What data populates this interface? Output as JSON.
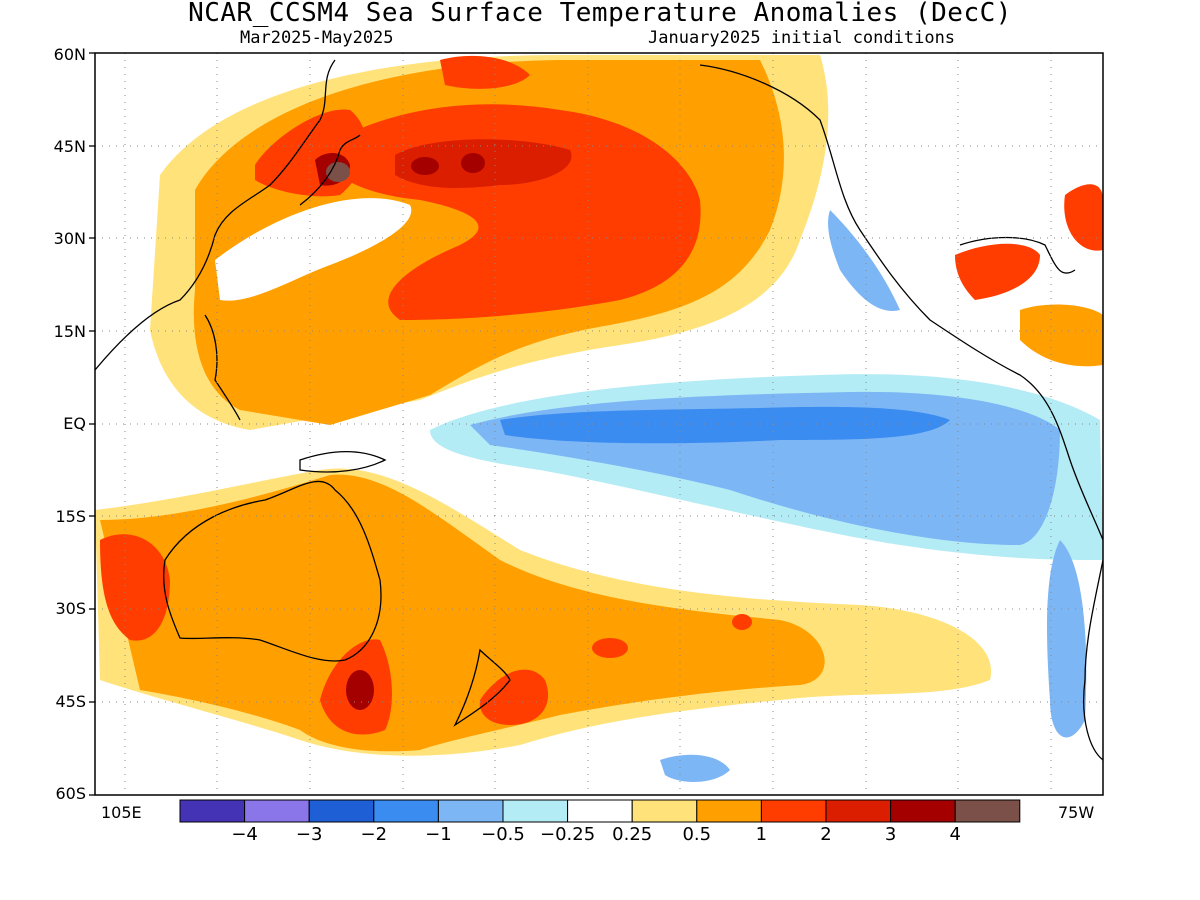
{
  "title": "NCAR_CCSM4 Sea Surface Temperature Anomalies (DecC)",
  "subtitle_left": "Mar2025-May2025",
  "subtitle_right": "January2025 initial conditions",
  "lat_labels": [
    "60N",
    "45N",
    "30N",
    "15N",
    "EQ",
    "15S",
    "30S",
    "45S",
    "60S"
  ],
  "lon_left": "105E",
  "lon_right": "75W",
  "colorbar": {
    "colors": [
      "#4433b5",
      "#8a76e8",
      "#1f5fd6",
      "#3b8cf0",
      "#7db6f5",
      "#b4ecf5",
      "#ffffff",
      "#ffe27a",
      "#ffa000",
      "#ff3d00",
      "#dc1e00",
      "#a50000",
      "#7a5048"
    ],
    "labels": [
      "-4",
      "-3",
      "-2",
      "-1",
      "-0.5",
      "-0.25",
      "0.25",
      "0.5",
      "1",
      "2",
      "3",
      "4"
    ]
  }
}
